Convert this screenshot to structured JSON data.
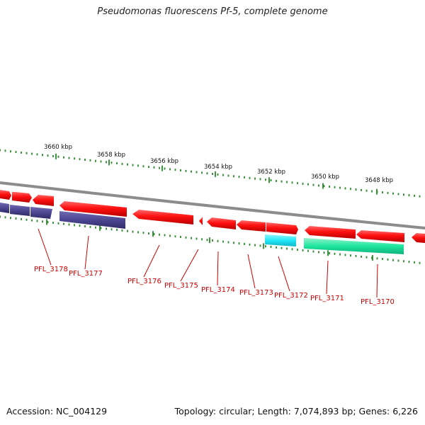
{
  "title": "Pseudomonas fluorescens Pf-5, complete genome",
  "footer": {
    "accession": "Accession: NC_004129",
    "topology": "Topology: circular; Length: 7,074,893 bp; Genes: 6,226"
  },
  "colors": {
    "backbone": "#8c8c8c",
    "cds_forward": "#ff1010",
    "cds_reverse_blue": "#4b4690",
    "cds_reverse_cyan": "#22e6f4",
    "cds_reverse_green": "#1ee6a0",
    "tick": "#2a8a2a",
    "label": "#cc0000"
  },
  "scale_labels": [
    "3660 kbp",
    "3658 kbp",
    "3656 kbp",
    "3654 kbp",
    "3652 kbp",
    "3650 kbp",
    "3648 kbp"
  ],
  "gene_labels": [
    "PFL_3178",
    "PFL_3177",
    "PFL_3176",
    "PFL_3175",
    "PFL_3174",
    "PFL_3173",
    "PFL_3172",
    "PFL_3171",
    "PFL_3170"
  ]
}
